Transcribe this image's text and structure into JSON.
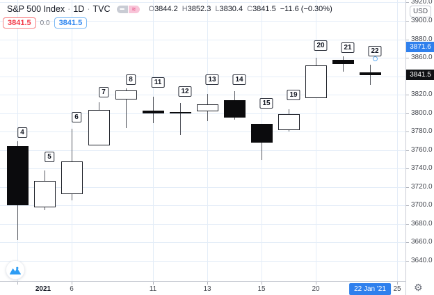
{
  "header": {
    "symbol": "S&P 500 Index",
    "separator": "·",
    "interval": "1D",
    "exchange": "TVC",
    "toggles": {
      "hide_icon": "minus-dash",
      "flag_icon": "≈"
    },
    "ohlc": {
      "o_label": "O",
      "o": "3844.2",
      "h_label": "H",
      "h": "3852.3",
      "l_label": "L",
      "l": "3830.4",
      "c_label": "C",
      "c": "3841.5",
      "change": "−11.6 (−0.30%)"
    },
    "quote": {
      "sell": "3841.5",
      "spread": "0.0",
      "buy": "3841.5"
    }
  },
  "price_axis": {
    "currency_button": "USD",
    "last_price_label": "3841.5",
    "marked_price_label": "3871.6"
  },
  "time_axis": {
    "highlighted_date": "22 Jan '21"
  },
  "colors": {
    "accent_blue": "#2f80ed",
    "sell_red": "#f23645",
    "buy_blue": "#2e86f0",
    "grid": "#e4edf8",
    "down_candle": "#0b0b0d",
    "up_candle": "#ffffff"
  },
  "chart_data": {
    "type": "candlestick",
    "title": "S&P 500 Index",
    "interval": "1D",
    "exchange": "TVC",
    "x_meaning": "day of month, January 2021",
    "candles": [
      {
        "day": "4",
        "o": 3764.6,
        "h": 3769.9,
        "l": 3662.7,
        "c": 3700.6,
        "label_gap": 5
      },
      {
        "day": "5",
        "o": 3698.0,
        "h": 3737.8,
        "l": 3695.1,
        "c": 3726.9,
        "label_gap": 12
      },
      {
        "day": "6",
        "o": 3712.2,
        "h": 3783.0,
        "l": 3705.3,
        "c": 3748.1,
        "label_gap": 9
      },
      {
        "day": "7",
        "o": 3764.7,
        "h": 3811.6,
        "l": 3764.7,
        "c": 3803.8,
        "label_gap": 7
      },
      {
        "day": "8",
        "o": 3815.1,
        "h": 3826.7,
        "l": 3783.6,
        "c": 3824.7,
        "label_gap": 5
      },
      {
        "day": "11",
        "o": 3803.1,
        "h": 3817.9,
        "l": 3789.0,
        "c": 3799.6,
        "label_gap": 13
      },
      {
        "day": "12",
        "o": 3801.6,
        "h": 3810.8,
        "l": 3776.5,
        "c": 3801.2,
        "label_gap": 9
      },
      {
        "day": "13",
        "o": 3802.2,
        "h": 3820.9,
        "l": 3791.5,
        "c": 3809.8,
        "label_gap": 13
      },
      {
        "day": "14",
        "o": 3814.0,
        "h": 3823.6,
        "l": 3792.9,
        "c": 3795.5,
        "label_gap": 9
      },
      {
        "day": "15",
        "o": 3788.7,
        "h": 3788.7,
        "l": 3749.6,
        "c": 3768.3,
        "label_gap": 22
      },
      {
        "day": "19",
        "o": 3781.9,
        "h": 3804.5,
        "l": 3780.4,
        "c": 3798.9,
        "label_gap": 13
      },
      {
        "day": "20",
        "o": 3816.2,
        "h": 3859.8,
        "l": 3816.2,
        "c": 3851.8,
        "label_gap": 10
      },
      {
        "day": "21",
        "o": 3857.5,
        "h": 3861.5,
        "l": 3845.1,
        "c": 3853.1,
        "label_gap": 5
      },
      {
        "day": "22",
        "o": 3844.2,
        "h": 3852.3,
        "l": 3830.4,
        "c": 3841.5,
        "label_gap": 12
      }
    ],
    "ylim": [
      3618.1,
      3922.6
    ],
    "price_ticks": [
      3920,
      3900,
      3880,
      3860,
      3840,
      3820,
      3800,
      3780,
      3760,
      3740,
      3720,
      3700,
      3680,
      3660,
      3640
    ],
    "hidden_price_ticks": [
      3840
    ],
    "time_ticks": [
      {
        "label": "2021",
        "day_index": 0,
        "bold": true,
        "label_dx": 37
      },
      {
        "label": "6",
        "day_index": 2
      },
      {
        "label": "11",
        "day_index": 5
      },
      {
        "label": "13",
        "day_index": 7
      },
      {
        "label": "15",
        "day_index": 9
      },
      {
        "label": "20",
        "day_index": 11
      },
      {
        "label": "25",
        "day_index": 14
      }
    ],
    "last_price": 3841.5,
    "marked_price": 3871.6,
    "marker_dot": {
      "day_index": 13,
      "price": 3858.6
    },
    "highlighted_date": {
      "label": "22 Jan '21",
      "day_index": 13
    },
    "grid": true,
    "legend_position": "top-left"
  }
}
